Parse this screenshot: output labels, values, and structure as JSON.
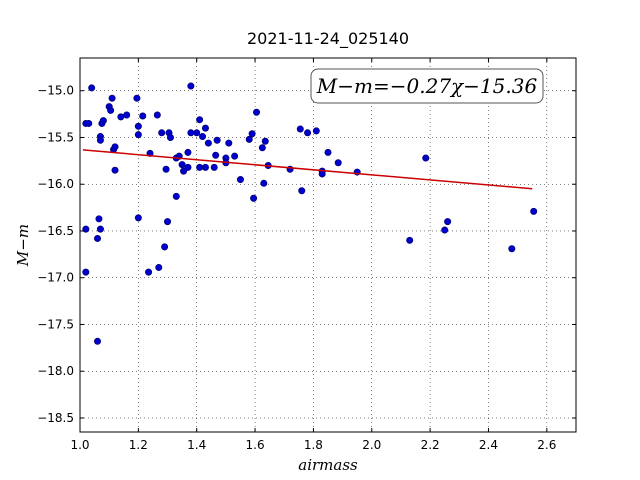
{
  "chart_data": {
    "type": "scatter",
    "title": "2021-11-24_025140",
    "xlabel": "airmass",
    "ylabel": "M−m",
    "xlim": [
      1.0,
      2.7
    ],
    "ylim": [
      -18.65,
      -14.65
    ],
    "xticks": [
      1.0,
      1.2,
      1.4,
      1.6,
      1.8,
      2.0,
      2.2,
      2.4,
      2.6
    ],
    "xtick_labels": [
      "1.0",
      "1.2",
      "1.4",
      "1.6",
      "1.8",
      "2.0",
      "2.2",
      "2.4",
      "2.6"
    ],
    "yticks": [
      -15.0,
      -15.5,
      -16.0,
      -16.5,
      -17.0,
      -17.5,
      -18.0,
      -18.5
    ],
    "ytick_labels": [
      "−15.0",
      "−15.5",
      "−16.0",
      "−16.5",
      "−17.0",
      "−17.5",
      "−18.0",
      "−18.5"
    ],
    "grid": true,
    "annotation": "M−m=−0.27χ−15.36",
    "points_color": "#0000cc",
    "fit_color": "#cc0000",
    "fit": {
      "slope": -0.27,
      "intercept": -15.36,
      "x_start": 1.01,
      "x_end": 2.55
    },
    "points": [
      [
        1.02,
        -15.35
      ],
      [
        1.03,
        -15.35
      ],
      [
        1.04,
        -14.97
      ],
      [
        1.02,
        -16.48
      ],
      [
        1.02,
        -16.94
      ],
      [
        1.06,
        -16.58
      ],
      [
        1.065,
        -16.37
      ],
      [
        1.07,
        -16.48
      ],
      [
        1.06,
        -17.68
      ],
      [
        1.07,
        -15.49
      ],
      [
        1.07,
        -15.53
      ],
      [
        1.075,
        -15.35
      ],
      [
        1.08,
        -15.32
      ],
      [
        1.1,
        -15.17
      ],
      [
        1.105,
        -15.21
      ],
      [
        1.11,
        -15.08
      ],
      [
        1.115,
        -15.63
      ],
      [
        1.12,
        -15.6
      ],
      [
        1.12,
        -15.85
      ],
      [
        1.14,
        -15.28
      ],
      [
        1.16,
        -15.26
      ],
      [
        1.195,
        -15.08
      ],
      [
        1.2,
        -15.38
      ],
      [
        1.2,
        -15.47
      ],
      [
        1.2,
        -16.36
      ],
      [
        1.215,
        -15.27
      ],
      [
        1.235,
        -16.94
      ],
      [
        1.24,
        -15.67
      ],
      [
        1.265,
        -15.26
      ],
      [
        1.27,
        -16.89
      ],
      [
        1.28,
        -15.45
      ],
      [
        1.29,
        -16.67
      ],
      [
        1.295,
        -15.84
      ],
      [
        1.3,
        -16.4
      ],
      [
        1.305,
        -15.45
      ],
      [
        1.31,
        -15.5
      ],
      [
        1.33,
        -16.13
      ],
      [
        1.33,
        -15.72
      ],
      [
        1.34,
        -15.7
      ],
      [
        1.35,
        -15.79
      ],
      [
        1.355,
        -15.86
      ],
      [
        1.37,
        -15.66
      ],
      [
        1.37,
        -15.82
      ],
      [
        1.38,
        -14.95
      ],
      [
        1.38,
        -15.45
      ],
      [
        1.4,
        -15.45
      ],
      [
        1.41,
        -15.31
      ],
      [
        1.41,
        -15.82
      ],
      [
        1.42,
        -15.49
      ],
      [
        1.43,
        -15.82
      ],
      [
        1.43,
        -15.4
      ],
      [
        1.44,
        -15.56
      ],
      [
        1.46,
        -15.82
      ],
      [
        1.465,
        -15.69
      ],
      [
        1.47,
        -15.53
      ],
      [
        1.5,
        -15.72
      ],
      [
        1.5,
        -15.77
      ],
      [
        1.51,
        -15.56
      ],
      [
        1.53,
        -15.7
      ],
      [
        1.55,
        -15.95
      ],
      [
        1.58,
        -15.52
      ],
      [
        1.59,
        -15.46
      ],
      [
        1.595,
        -16.15
      ],
      [
        1.605,
        -15.23
      ],
      [
        1.625,
        -15.61
      ],
      [
        1.63,
        -15.99
      ],
      [
        1.635,
        -15.54
      ],
      [
        1.645,
        -15.8
      ],
      [
        1.72,
        -15.84
      ],
      [
        1.755,
        -15.41
      ],
      [
        1.76,
        -16.07
      ],
      [
        1.78,
        -15.45
      ],
      [
        1.81,
        -15.43
      ],
      [
        1.83,
        -15.86
      ],
      [
        1.83,
        -15.89
      ],
      [
        1.85,
        -15.66
      ],
      [
        1.885,
        -15.77
      ],
      [
        1.95,
        -15.87
      ],
      [
        2.13,
        -16.6
      ],
      [
        2.185,
        -15.72
      ],
      [
        2.25,
        -16.49
      ],
      [
        2.26,
        -16.4
      ],
      [
        2.48,
        -16.69
      ],
      [
        2.555,
        -16.29
      ]
    ]
  }
}
